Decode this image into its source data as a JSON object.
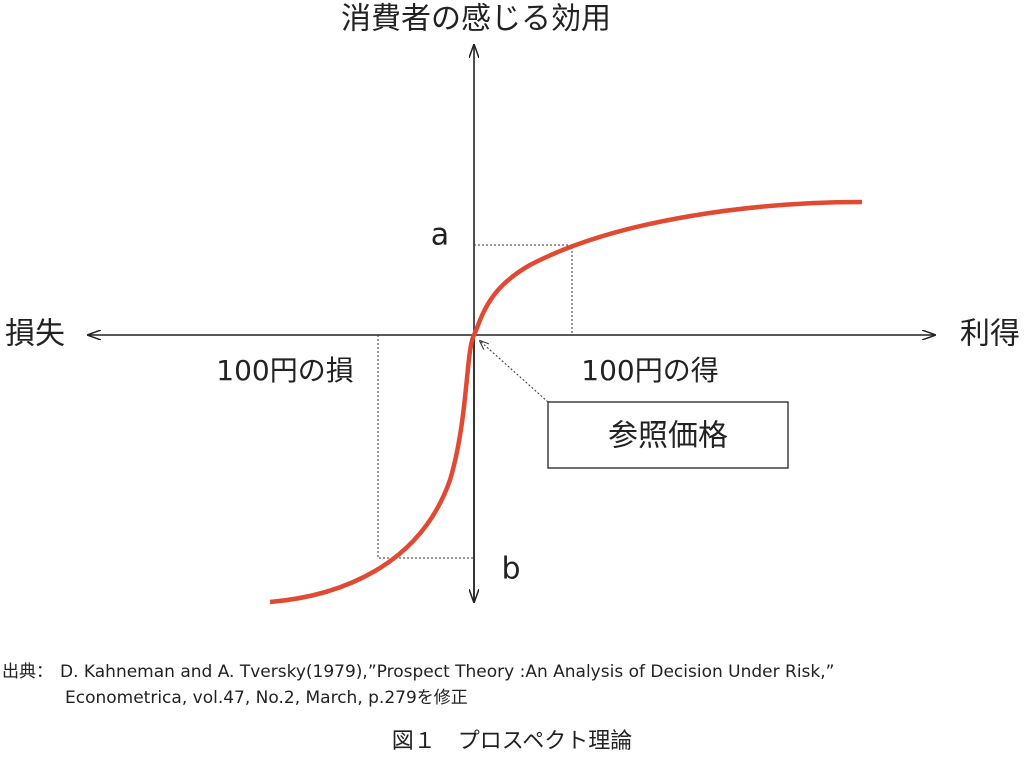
{
  "diagram": {
    "y_axis_label": "消費者の感じる効用",
    "x_axis_left_label": "損失",
    "x_axis_right_label": "利得",
    "point_a_label": "a",
    "point_b_label": "b",
    "loss_label": "100円の損",
    "gain_label": "100円の得",
    "reference_label": "参照価格"
  },
  "source": {
    "prefix": "出典：",
    "lines": [
      "D. Kahneman and A. Tversky(1979),”Prospect Theory :An Analysis of Decision Under Risk,”",
      "Econometrica, vol.47, No.2, March, p.279を修正"
    ]
  },
  "caption": "図１　プロスペクト理論"
}
